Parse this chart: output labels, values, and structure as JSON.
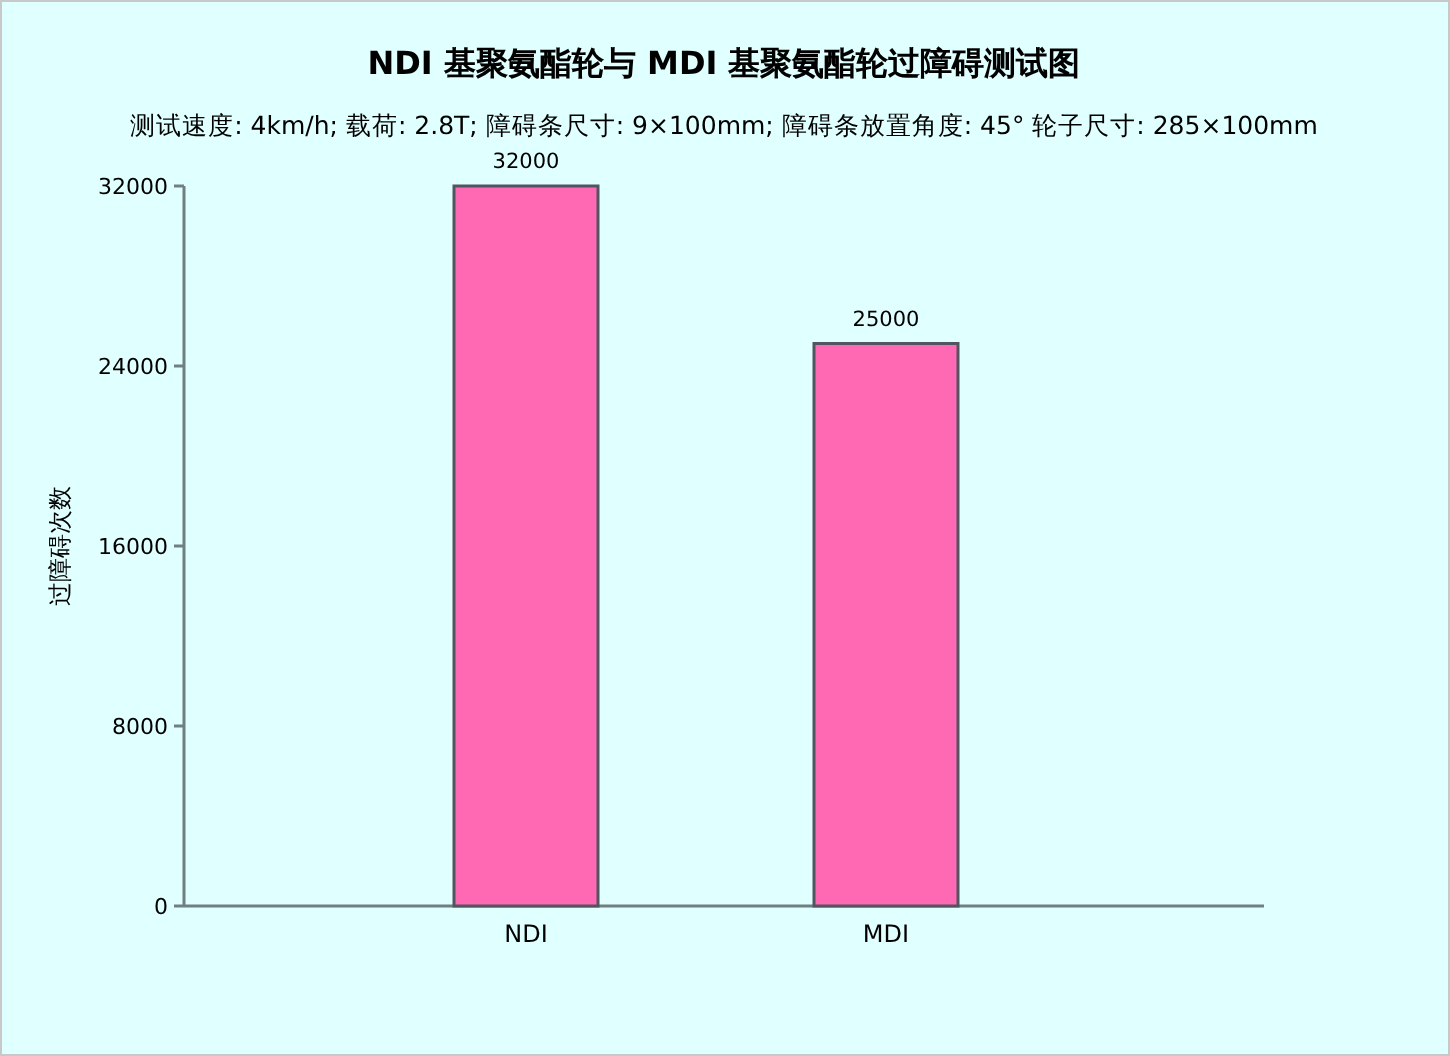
{
  "chart_data": {
    "type": "bar",
    "title": "NDI 基聚氨酯轮与 MDI 基聚氨酯轮过障碍测试图",
    "subtitle": "测试速度: 4km/h; 载荷: 2.8T; 障碍条尺寸: 9×100mm; 障碍条放置角度: 45° 轮子尺寸: 285×100mm",
    "ylabel": "过障碍次数",
    "categories": [
      "NDI",
      "MDI"
    ],
    "values": [
      32000,
      25000
    ],
    "color": "#ff69b4",
    "ylim": [
      0,
      32000
    ],
    "yticks": [
      0,
      8000,
      16000,
      24000,
      32000
    ],
    "data_labels": true
  }
}
